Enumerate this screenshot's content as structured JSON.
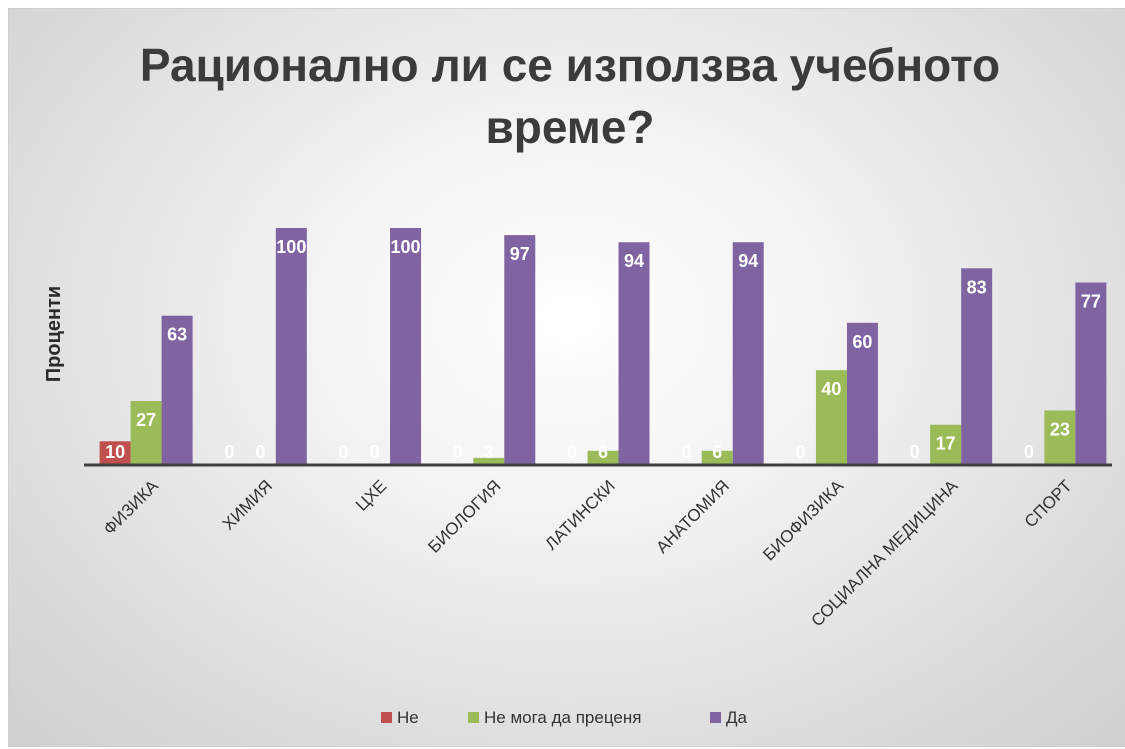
{
  "chart_data": {
    "type": "bar",
    "title": "Рационално ли се използва учебното време?",
    "title_lines": [
      "Рационално ли се използва учебното",
      "време?"
    ],
    "xlabel": "",
    "ylabel": "Проценти",
    "ylim": [
      0,
      100
    ],
    "grid": false,
    "legend_position": "bottom",
    "categories": [
      "ФИЗИКА",
      "ХИМИЯ",
      "ЦХЕ",
      "БИОЛОГИЯ",
      "ЛАТИНСКИ",
      "АНАТОМИЯ",
      "БИОФИЗИКА",
      "СОЦИАЛНА МЕДИЦИНА",
      "СПОРТ"
    ],
    "series": [
      {
        "name": "Не",
        "color": "#c0504d",
        "values": [
          10,
          0,
          0,
          0,
          0,
          0,
          0,
          0,
          0
        ]
      },
      {
        "name": "Не мога да преценя",
        "color": "#9bbb59",
        "values": [
          27,
          0,
          0,
          3,
          6,
          6,
          40,
          17,
          23
        ]
      },
      {
        "name": "Да",
        "color": "#8064a2",
        "values": [
          63,
          100,
          100,
          97,
          94,
          94,
          60,
          83,
          77
        ]
      }
    ]
  }
}
